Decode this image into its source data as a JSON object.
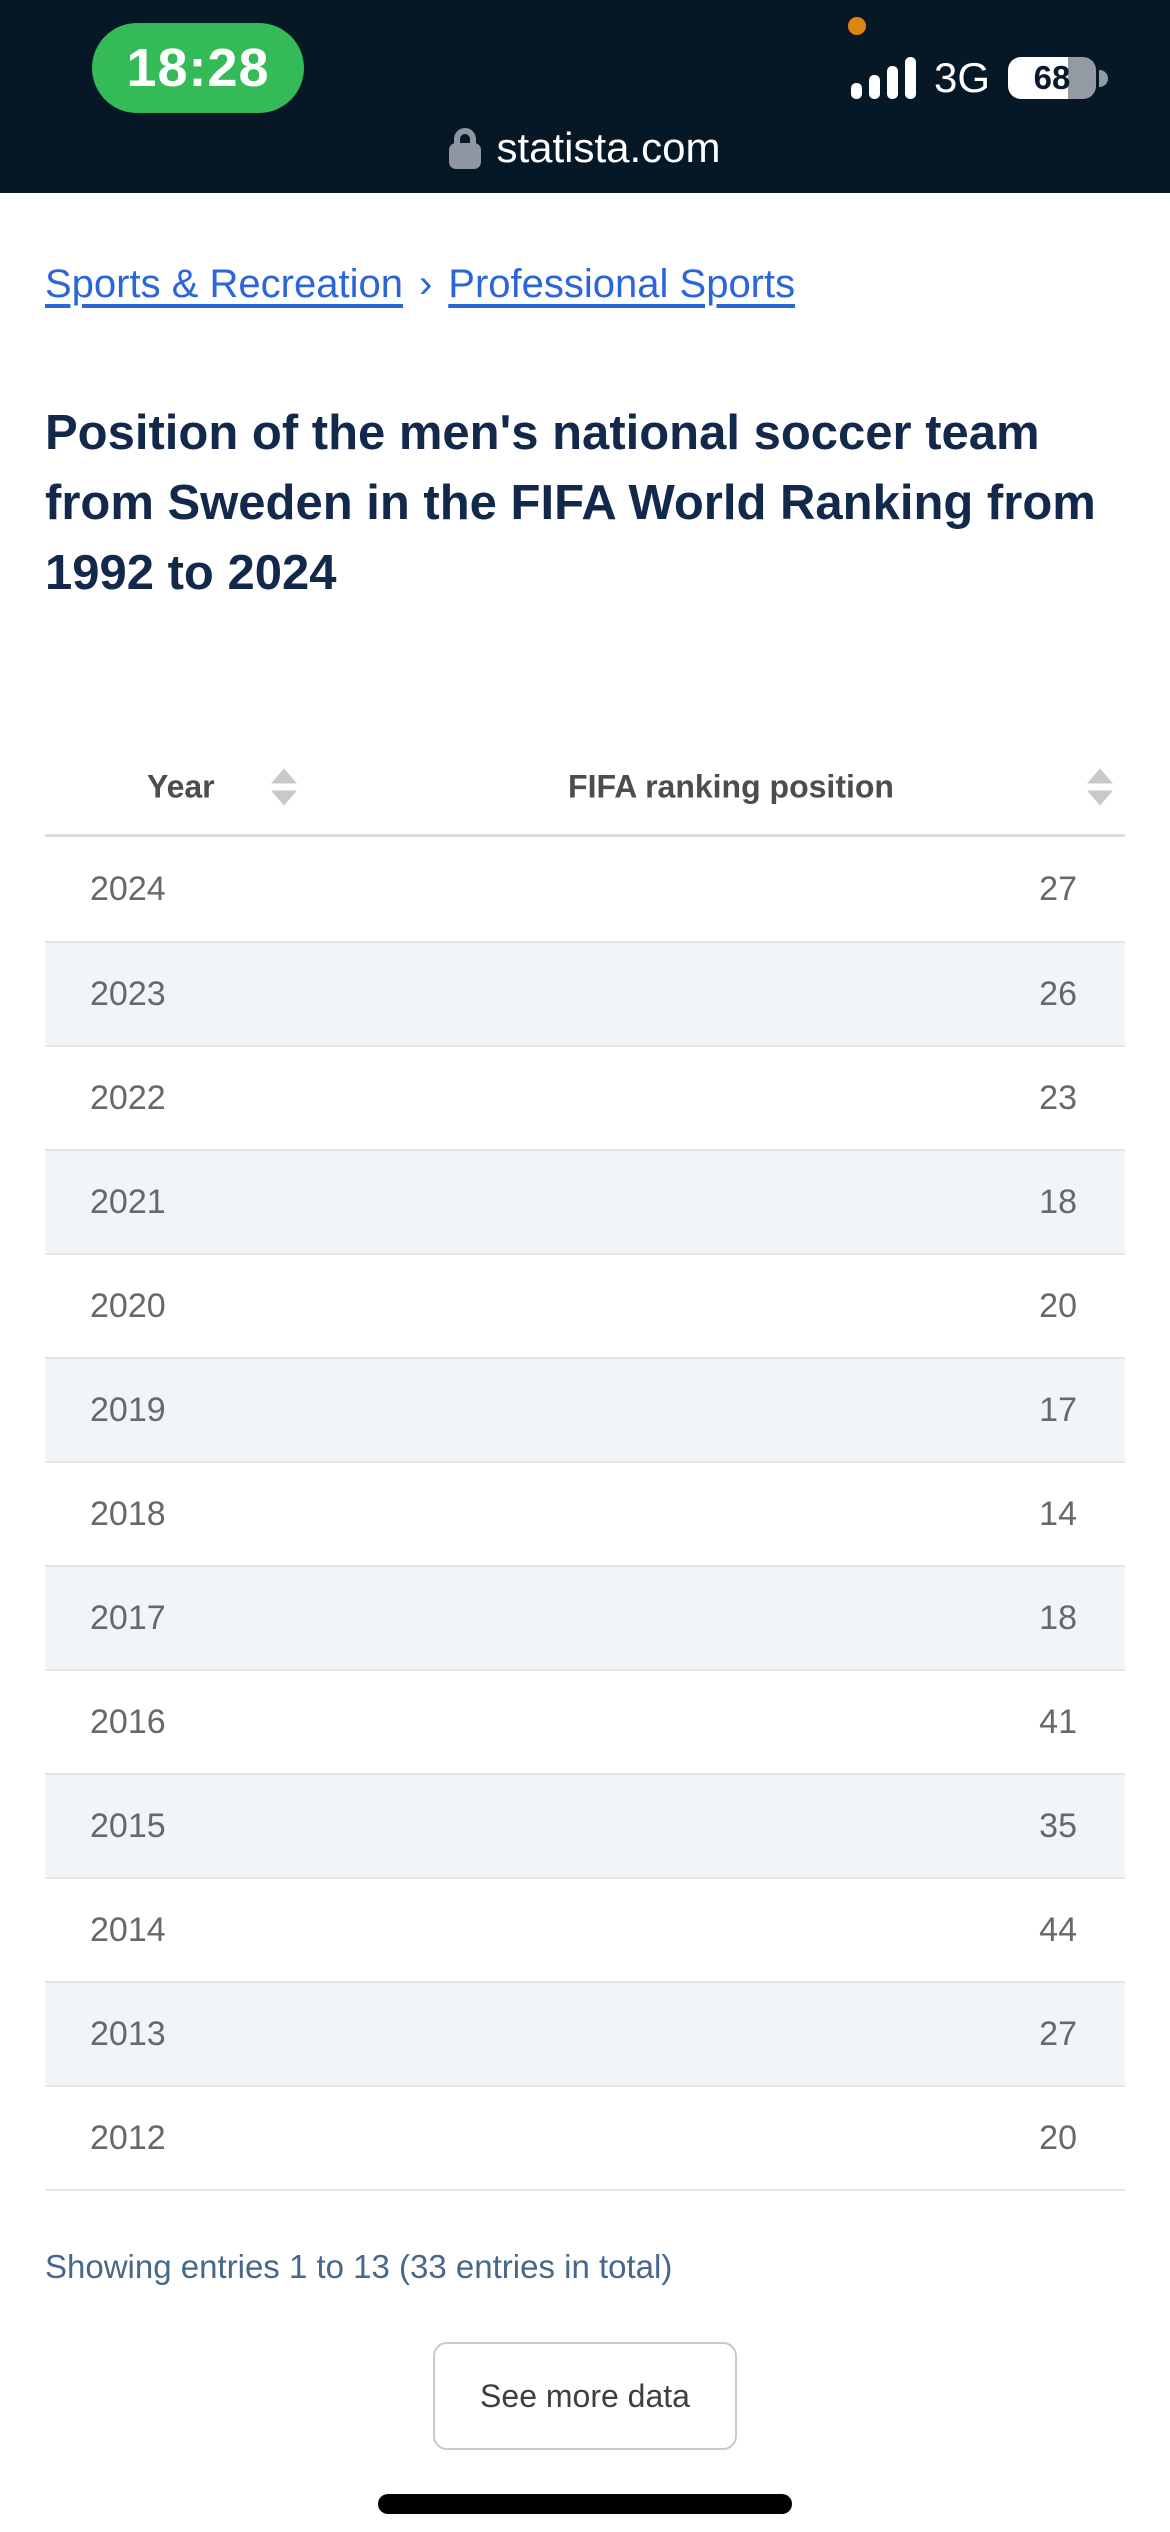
{
  "status_bar": {
    "time": "18:28",
    "network_type": "3G",
    "battery_percent": "68",
    "colors": {
      "bar_bg": "#061726",
      "time_pill_green": "#34bb57",
      "recording_dot_orange": "#dd850f"
    }
  },
  "url_bar": {
    "domain": "statista.com",
    "lock_icon": "lock-icon"
  },
  "breadcrumb": {
    "separator": "›",
    "link_color": "#2a65db",
    "items": [
      {
        "label": "Sports & Recreation"
      },
      {
        "label": "Professional Sports"
      }
    ]
  },
  "page": {
    "title": "Position of the men's national soccer team from Sweden in the FIFA World Ranking from 1992 to 2024",
    "title_color": "#13294b"
  },
  "table": {
    "columns": [
      {
        "label": "Year",
        "sort_icon": "sort-icon"
      },
      {
        "label": "FIFA ranking position",
        "sort_icon": "sort-icon"
      }
    ],
    "stripe_color": "#f1f5f8",
    "rows": [
      {
        "year": "2024",
        "position": "27"
      },
      {
        "year": "2023",
        "position": "26"
      },
      {
        "year": "2022",
        "position": "23"
      },
      {
        "year": "2021",
        "position": "18"
      },
      {
        "year": "2020",
        "position": "20"
      },
      {
        "year": "2019",
        "position": "17"
      },
      {
        "year": "2018",
        "position": "14"
      },
      {
        "year": "2017",
        "position": "18"
      },
      {
        "year": "2016",
        "position": "41"
      },
      {
        "year": "2015",
        "position": "35"
      },
      {
        "year": "2014",
        "position": "44"
      },
      {
        "year": "2013",
        "position": "27"
      },
      {
        "year": "2012",
        "position": "20"
      }
    ]
  },
  "chart_data": {
    "type": "table",
    "title": "Position of the men's national soccer team from Sweden in the FIFA World Ranking from 1992 to 2024",
    "columns": [
      "Year",
      "FIFA ranking position"
    ],
    "categories": [
      "2024",
      "2023",
      "2022",
      "2021",
      "2020",
      "2019",
      "2018",
      "2017",
      "2016",
      "2015",
      "2014",
      "2013",
      "2012"
    ],
    "values": [
      27,
      26,
      23,
      18,
      20,
      17,
      14,
      18,
      41,
      35,
      44,
      27,
      20
    ]
  },
  "footer": {
    "showing": "Showing entries 1 to 13 (33 entries in total)",
    "see_more_label": "See more data"
  }
}
